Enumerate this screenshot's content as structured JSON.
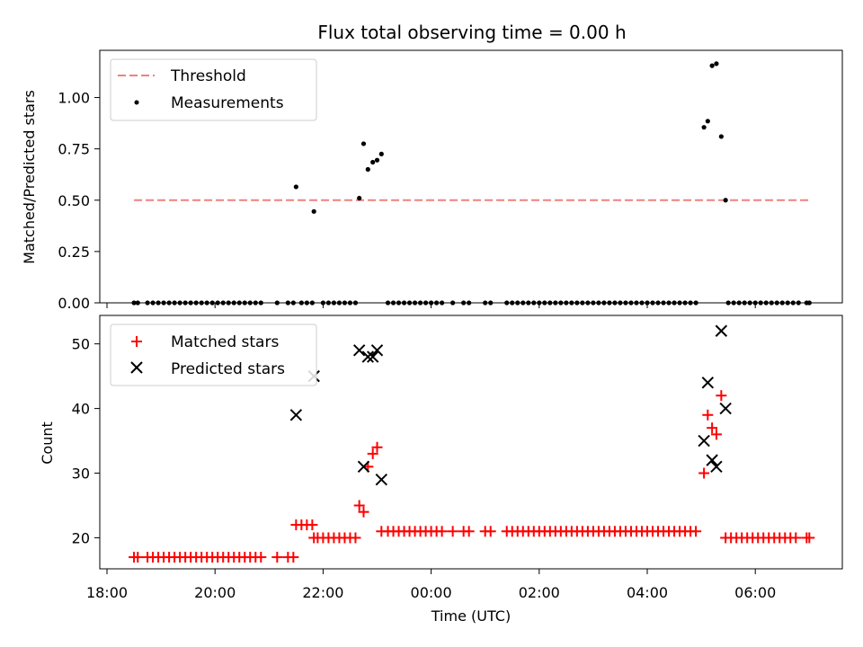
{
  "chart_data": {
    "title": "Flux total observing time = 0.00 h",
    "xlabel": "Time (UTC)",
    "x_ticks": [
      {
        "t": 18.0,
        "label": "18:00"
      },
      {
        "t": 20.0,
        "label": "20:00"
      },
      {
        "t": 22.0,
        "label": "22:00"
      },
      {
        "t": 24.0,
        "label": "00:00"
      },
      {
        "t": 26.0,
        "label": "02:00"
      },
      {
        "t": 28.0,
        "label": "04:00"
      },
      {
        "t": 30.0,
        "label": "06:00"
      }
    ],
    "top": {
      "type": "scatter",
      "ylabel": "Matched/Predicted stars",
      "ylim": [
        0,
        1.23
      ],
      "y_ticks": [
        "0.00",
        "0.25",
        "0.50",
        "0.75",
        "1.00"
      ],
      "threshold": {
        "name": "Threshold",
        "value": 0.5,
        "x": [
          18.5,
          31.0
        ],
        "color": "#f08080"
      },
      "measurements": {
        "name": "Measurements",
        "color": "#000000",
        "zero_times": [
          18.5,
          18.57,
          18.75,
          18.85,
          18.95,
          19.05,
          19.15,
          19.25,
          19.35,
          19.45,
          19.55,
          19.65,
          19.75,
          19.85,
          19.95,
          20.05,
          20.15,
          20.25,
          20.35,
          20.45,
          20.55,
          20.65,
          20.75,
          20.85,
          21.15,
          21.35,
          21.45,
          21.6,
          21.7,
          21.8,
          22.0,
          22.1,
          22.2,
          22.3,
          22.4,
          22.5,
          22.6,
          23.2,
          23.3,
          23.4,
          23.5,
          23.6,
          23.7,
          23.8,
          23.9,
          24.0,
          24.1,
          24.2,
          24.4,
          24.6,
          24.7,
          25.0,
          25.1,
          25.4,
          25.5,
          25.6,
          25.7,
          25.8,
          25.9,
          26.0,
          26.1,
          26.2,
          26.3,
          26.4,
          26.5,
          26.6,
          26.7,
          26.8,
          26.9,
          27.0,
          27.1,
          27.2,
          27.3,
          27.4,
          27.5,
          27.6,
          27.7,
          27.8,
          27.9,
          28.0,
          28.1,
          28.2,
          28.3,
          28.4,
          28.5,
          28.6,
          28.7,
          28.8,
          28.9,
          29.5,
          29.6,
          29.7,
          29.8,
          29.9,
          30.0,
          30.1,
          30.2,
          30.3,
          30.4,
          30.5,
          30.6,
          30.7,
          30.8,
          30.95,
          31.0
        ],
        "points": [
          {
            "x": 21.5,
            "y": 0.565
          },
          {
            "x": 21.83,
            "y": 0.445
          },
          {
            "x": 22.67,
            "y": 0.51
          },
          {
            "x": 22.75,
            "y": 0.775
          },
          {
            "x": 22.83,
            "y": 0.65
          },
          {
            "x": 22.92,
            "y": 0.685
          },
          {
            "x": 23.0,
            "y": 0.695
          },
          {
            "x": 23.08,
            "y": 0.725
          },
          {
            "x": 29.05,
            "y": 0.855
          },
          {
            "x": 29.12,
            "y": 0.885
          },
          {
            "x": 29.2,
            "y": 1.155
          },
          {
            "x": 29.28,
            "y": 1.165
          },
          {
            "x": 29.37,
            "y": 0.81
          },
          {
            "x": 29.45,
            "y": 0.5
          }
        ]
      },
      "legend": [
        "Threshold",
        "Measurements"
      ]
    },
    "bottom": {
      "type": "scatter",
      "ylabel": "Count",
      "ylim": [
        15.2,
        54.4
      ],
      "y_ticks": [
        "20",
        "30",
        "40",
        "50"
      ],
      "matched": {
        "name": "Matched stars",
        "color": "#ff0000",
        "points": [
          [
            18.5,
            17
          ],
          [
            18.57,
            17
          ],
          [
            18.75,
            17
          ],
          [
            18.85,
            17
          ],
          [
            18.95,
            17
          ],
          [
            19.05,
            17
          ],
          [
            19.15,
            17
          ],
          [
            19.25,
            17
          ],
          [
            19.35,
            17
          ],
          [
            19.45,
            17
          ],
          [
            19.55,
            17
          ],
          [
            19.65,
            17
          ],
          [
            19.75,
            17
          ],
          [
            19.85,
            17
          ],
          [
            19.95,
            17
          ],
          [
            20.05,
            17
          ],
          [
            20.15,
            17
          ],
          [
            20.25,
            17
          ],
          [
            20.35,
            17
          ],
          [
            20.45,
            17
          ],
          [
            20.55,
            17
          ],
          [
            20.65,
            17
          ],
          [
            20.75,
            17
          ],
          [
            20.85,
            17
          ],
          [
            21.15,
            17
          ],
          [
            21.35,
            17
          ],
          [
            21.45,
            17
          ],
          [
            21.5,
            22
          ],
          [
            21.6,
            22
          ],
          [
            21.7,
            22
          ],
          [
            21.8,
            22
          ],
          [
            21.83,
            20
          ],
          [
            21.9,
            20
          ],
          [
            22.0,
            20
          ],
          [
            22.1,
            20
          ],
          [
            22.2,
            20
          ],
          [
            22.3,
            20
          ],
          [
            22.4,
            20
          ],
          [
            22.5,
            20
          ],
          [
            22.6,
            20
          ],
          [
            22.67,
            25
          ],
          [
            22.75,
            24
          ],
          [
            22.83,
            31
          ],
          [
            22.92,
            33
          ],
          [
            23.0,
            34
          ],
          [
            23.08,
            21
          ],
          [
            23.2,
            21
          ],
          [
            23.3,
            21
          ],
          [
            23.4,
            21
          ],
          [
            23.5,
            21
          ],
          [
            23.6,
            21
          ],
          [
            23.7,
            21
          ],
          [
            23.8,
            21
          ],
          [
            23.9,
            21
          ],
          [
            24.0,
            21
          ],
          [
            24.1,
            21
          ],
          [
            24.2,
            21
          ],
          [
            24.4,
            21
          ],
          [
            24.6,
            21
          ],
          [
            24.7,
            21
          ],
          [
            25.0,
            21
          ],
          [
            25.1,
            21
          ],
          [
            25.4,
            21
          ],
          [
            25.5,
            21
          ],
          [
            25.6,
            21
          ],
          [
            25.7,
            21
          ],
          [
            25.8,
            21
          ],
          [
            25.9,
            21
          ],
          [
            26.0,
            21
          ],
          [
            26.1,
            21
          ],
          [
            26.2,
            21
          ],
          [
            26.3,
            21
          ],
          [
            26.4,
            21
          ],
          [
            26.5,
            21
          ],
          [
            26.6,
            21
          ],
          [
            26.7,
            21
          ],
          [
            26.8,
            21
          ],
          [
            26.9,
            21
          ],
          [
            27.0,
            21
          ],
          [
            27.1,
            21
          ],
          [
            27.2,
            21
          ],
          [
            27.3,
            21
          ],
          [
            27.4,
            21
          ],
          [
            27.5,
            21
          ],
          [
            27.6,
            21
          ],
          [
            27.7,
            21
          ],
          [
            27.8,
            21
          ],
          [
            27.9,
            21
          ],
          [
            28.0,
            21
          ],
          [
            28.1,
            21
          ],
          [
            28.2,
            21
          ],
          [
            28.3,
            21
          ],
          [
            28.4,
            21
          ],
          [
            28.5,
            21
          ],
          [
            28.6,
            21
          ],
          [
            28.7,
            21
          ],
          [
            28.8,
            21
          ],
          [
            28.9,
            21
          ],
          [
            29.05,
            30
          ],
          [
            29.12,
            39
          ],
          [
            29.2,
            37
          ],
          [
            29.28,
            36
          ],
          [
            29.37,
            42
          ],
          [
            29.45,
            20
          ],
          [
            29.55,
            20
          ],
          [
            29.65,
            20
          ],
          [
            29.75,
            20
          ],
          [
            29.85,
            20
          ],
          [
            29.95,
            20
          ],
          [
            30.05,
            20
          ],
          [
            30.15,
            20
          ],
          [
            30.25,
            20
          ],
          [
            30.35,
            20
          ],
          [
            30.45,
            20
          ],
          [
            30.55,
            20
          ],
          [
            30.65,
            20
          ],
          [
            30.75,
            20
          ],
          [
            30.95,
            20
          ],
          [
            31.0,
            20
          ]
        ]
      },
      "predicted": {
        "name": "Predicted stars",
        "color": "#000000",
        "points": [
          [
            21.5,
            39
          ],
          [
            21.83,
            45
          ],
          [
            22.67,
            49
          ],
          [
            22.75,
            31
          ],
          [
            22.83,
            48
          ],
          [
            22.92,
            48
          ],
          [
            23.0,
            49
          ],
          [
            23.08,
            29
          ],
          [
            29.05,
            35
          ],
          [
            29.12,
            44
          ],
          [
            29.2,
            32
          ],
          [
            29.28,
            31
          ],
          [
            29.37,
            52
          ],
          [
            29.45,
            40
          ]
        ]
      },
      "legend": [
        "Matched stars",
        "Predicted stars"
      ]
    }
  }
}
